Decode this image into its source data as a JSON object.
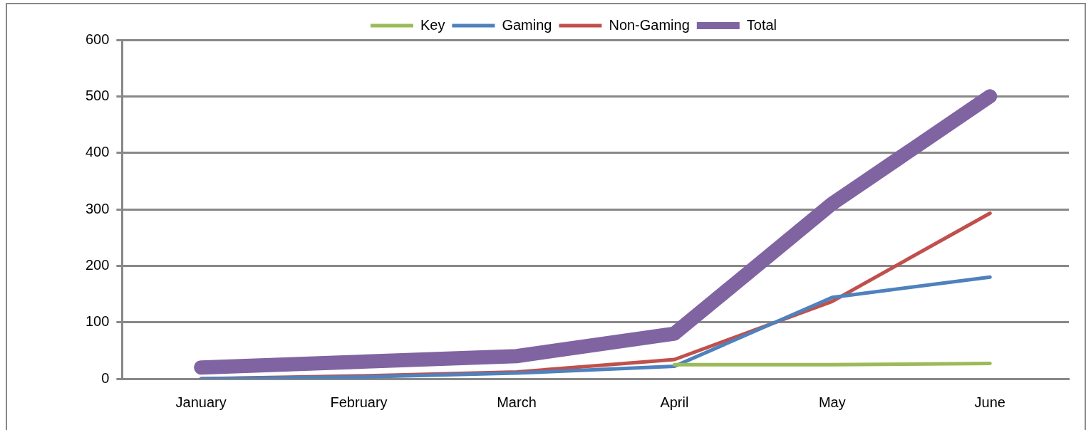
{
  "chart_data": {
    "type": "line",
    "categories": [
      "January",
      "February",
      "March",
      "April",
      "May",
      "June"
    ],
    "series": [
      {
        "name": "Key",
        "color": "#9bbb59",
        "values": [
          null,
          null,
          null,
          25,
          25,
          27
        ]
      },
      {
        "name": "Gaming",
        "color": "#4f81bd",
        "values": [
          0,
          3,
          10,
          22,
          144,
          180
        ]
      },
      {
        "name": "Non-Gaming",
        "color": "#c0504d",
        "values": [
          0,
          5,
          12,
          34,
          137,
          293
        ]
      },
      {
        "name": "Total",
        "color": "#8064a2",
        "values": [
          20,
          30,
          40,
          80,
          310,
          500
        ]
      }
    ],
    "ylim": [
      0,
      600
    ],
    "yticks": [
      0,
      100,
      200,
      300,
      400,
      500,
      600
    ],
    "grid": "y",
    "legend": "top",
    "marker": "none",
    "line_style": "solid"
  }
}
